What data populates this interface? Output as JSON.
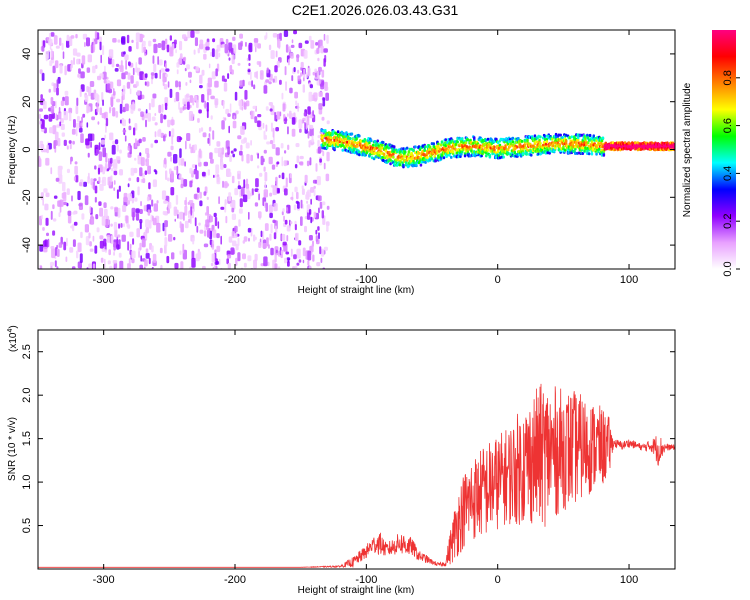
{
  "title": "C2E1.2026.026.03.43.G31",
  "chart_data": [
    {
      "type": "heatmap",
      "xlabel": "Height of straight line (km)",
      "ylabel": "Frequency (Hz)",
      "xlim": [
        -350,
        135
      ],
      "ylim": [
        -50,
        50
      ],
      "x_ticks": [
        -300,
        -200,
        -100,
        0,
        100
      ],
      "x_tick_labels": [
        "-300",
        "-200",
        "-100",
        "0",
        "100"
      ],
      "y_ticks": [
        -40,
        -20,
        0,
        20,
        40
      ],
      "y_tick_labels": [
        "-40",
        "-20",
        "0",
        "20",
        "40"
      ],
      "noise_region_x": [
        -350,
        -130
      ],
      "signal_ridge": {
        "x": [
          -130,
          -110,
          -90,
          -75,
          -60,
          -40,
          -20,
          0,
          20,
          40,
          60,
          80,
          100,
          120,
          135
        ],
        "freq_hz": [
          5,
          3,
          0,
          -3,
          -2,
          1,
          2,
          1,
          2,
          3,
          3,
          2,
          2,
          2,
          2
        ]
      },
      "colorbar": {
        "label": "Normalized spectral amplitude",
        "range": [
          0,
          1
        ],
        "ticks": [
          0.0,
          0.2,
          0.4,
          0.6,
          0.8
        ],
        "tick_labels": [
          "0.0",
          "0.2",
          "0.4",
          "0.6",
          "0.8"
        ],
        "colors": [
          "#ffffff",
          "#e8a0ff",
          "#9000ff",
          "#0000ff",
          "#00ffff",
          "#00ff00",
          "#ffff00",
          "#ff8000",
          "#ff0000",
          "#ff0080"
        ]
      }
    },
    {
      "type": "line",
      "xlabel": "Height of straight line (km)",
      "ylabel": "SNR (10 * v/v)",
      "y_scale_label": "(x10",
      "y_scale_exp": "4",
      "y_scale_close": ")",
      "xlim": [
        -350,
        135
      ],
      "ylim": [
        0,
        2.75
      ],
      "x_ticks": [
        -300,
        -200,
        -100,
        0,
        100
      ],
      "x_tick_labels": [
        "-300",
        "-200",
        "-100",
        "0",
        "100"
      ],
      "y_ticks": [
        0.5,
        1.0,
        1.5,
        2.0,
        2.5
      ],
      "y_tick_labels": [
        "0.5",
        "1.0",
        "1.5",
        "2.0",
        "2.5"
      ],
      "line_color": "#ee3333",
      "series": [
        {
          "name": "SNR",
          "x": [
            -350,
            -300,
            -250,
            -200,
            -150,
            -120,
            -110,
            -100,
            -95,
            -90,
            -85,
            -80,
            -75,
            -70,
            -65,
            -60,
            -55,
            -50,
            -45,
            -40,
            -35,
            -30,
            -25,
            -20,
            -15,
            -10,
            -5,
            0,
            5,
            10,
            15,
            20,
            25,
            30,
            35,
            40,
            45,
            50,
            55,
            60,
            65,
            70,
            75,
            80,
            85,
            88,
            95,
            100,
            110,
            118,
            122,
            128,
            135
          ],
          "mean": [
            0.02,
            0.02,
            0.02,
            0.02,
            0.02,
            0.03,
            0.08,
            0.2,
            0.28,
            0.3,
            0.22,
            0.25,
            0.3,
            0.28,
            0.25,
            0.15,
            0.12,
            0.08,
            0.05,
            0.06,
            0.3,
            0.55,
            0.7,
            0.8,
            0.85,
            0.9,
            0.95,
            1.0,
            1.05,
            1.1,
            1.15,
            1.2,
            1.25,
            1.3,
            1.32,
            1.35,
            1.35,
            1.38,
            1.38,
            1.4,
            1.4,
            1.4,
            1.42,
            1.4,
            1.4,
            1.45,
            1.42,
            1.45,
            1.4,
            1.42,
            1.38,
            1.4,
            1.4
          ],
          "amp": [
            0,
            0,
            0,
            0,
            0,
            0.01,
            0.06,
            0.08,
            0.1,
            0.14,
            0.08,
            0.1,
            0.12,
            0.14,
            0.1,
            0.06,
            0.05,
            0.03,
            0.02,
            0.03,
            0.25,
            0.4,
            0.45,
            0.5,
            0.5,
            0.55,
            0.55,
            0.55,
            0.55,
            0.6,
            0.65,
            0.7,
            0.75,
            0.8,
            0.85,
            0.8,
            0.75,
            0.7,
            0.7,
            0.65,
            0.6,
            0.55,
            0.5,
            0.45,
            0.35,
            0.05,
            0.05,
            0.05,
            0.04,
            0.08,
            0.2,
            0.04,
            0.03
          ]
        }
      ]
    }
  ]
}
